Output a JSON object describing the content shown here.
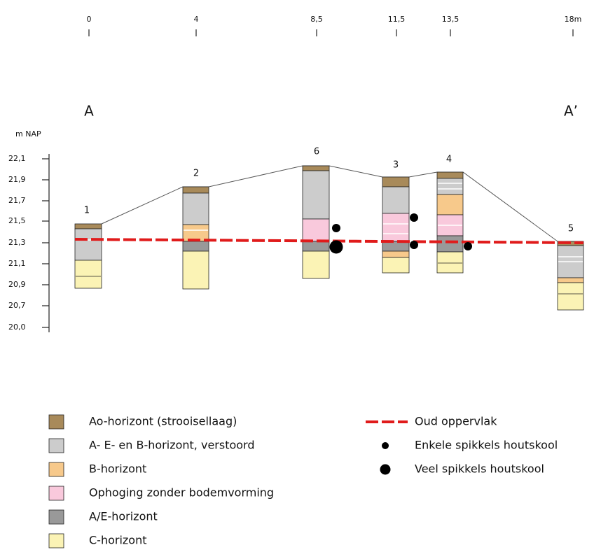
{
  "distance_labels": [
    "0",
    "4",
    "8,5",
    "11,5",
    "13,5",
    "18m"
  ],
  "section_labels": [
    "A",
    "A’"
  ],
  "axis": {
    "title": "m NAP",
    "ticks": [
      "22,1",
      "21,9",
      "21,7",
      "21,5",
      "21,3",
      "21,1",
      "20,9",
      "20,7",
      "20,0"
    ]
  },
  "profiles": [
    "1",
    "2",
    "6",
    "3",
    "4",
    "5"
  ],
  "legend": {
    "layers": [
      "Ao-horizont (strooisellaag)",
      "A- E- en B-horizont, verstoord",
      "B-horizont",
      "Ophoging zonder bodemvorming",
      "A/E-horizont",
      "C-horizont"
    ],
    "symbols": [
      "Oud oppervlak",
      "Enkele spikkels houtskool",
      "Veel spikkels houtskool"
    ]
  }
}
